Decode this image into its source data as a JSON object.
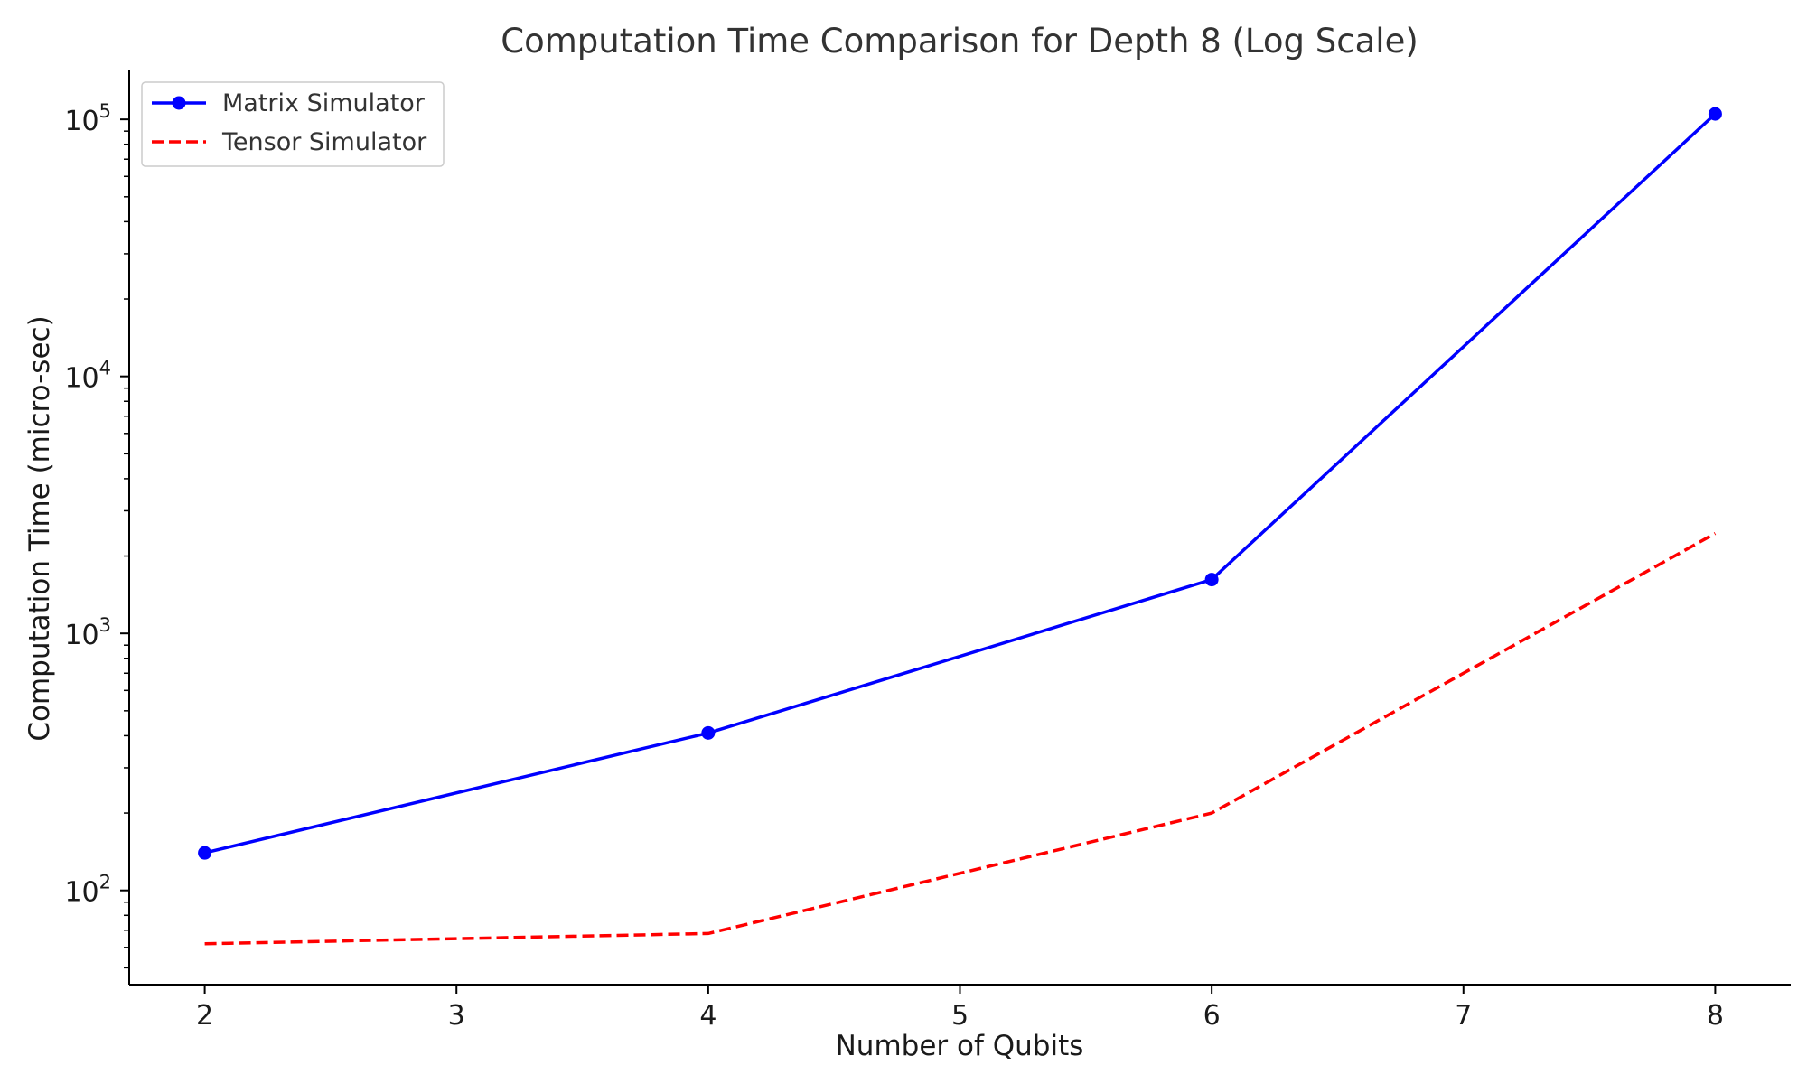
{
  "chart_data": {
    "type": "line",
    "title": "Computation Time Comparison for Depth 8 (Log Scale)",
    "xlabel": "Number of Qubits",
    "ylabel": "Computation Time (micro-sec)",
    "xlim": [
      1.7,
      8.3
    ],
    "ylim": [
      43,
      155000
    ],
    "yscale": "log",
    "x_ticks": [
      2,
      3,
      4,
      5,
      6,
      7,
      8
    ],
    "y_major_ticks": [
      {
        "value": 100,
        "base": "10",
        "exp": "2"
      },
      {
        "value": 1000,
        "base": "10",
        "exp": "3"
      },
      {
        "value": 10000,
        "base": "10",
        "exp": "4"
      },
      {
        "value": 100000,
        "base": "10",
        "exp": "5"
      }
    ],
    "grid": false,
    "legend_position": "top-left",
    "series": [
      {
        "name": "Matrix Simulator",
        "color": "#0000ff",
        "style": "solid",
        "marker": "circle",
        "x": [
          2,
          4,
          6,
          8
        ],
        "y": [
          140,
          410,
          1620,
          105000
        ]
      },
      {
        "name": "Tensor Simulator",
        "color": "#ff0000",
        "style": "dashed",
        "marker": "none",
        "x": [
          2,
          4,
          6,
          8
        ],
        "y": [
          62,
          68,
          200,
          2450
        ]
      }
    ]
  }
}
